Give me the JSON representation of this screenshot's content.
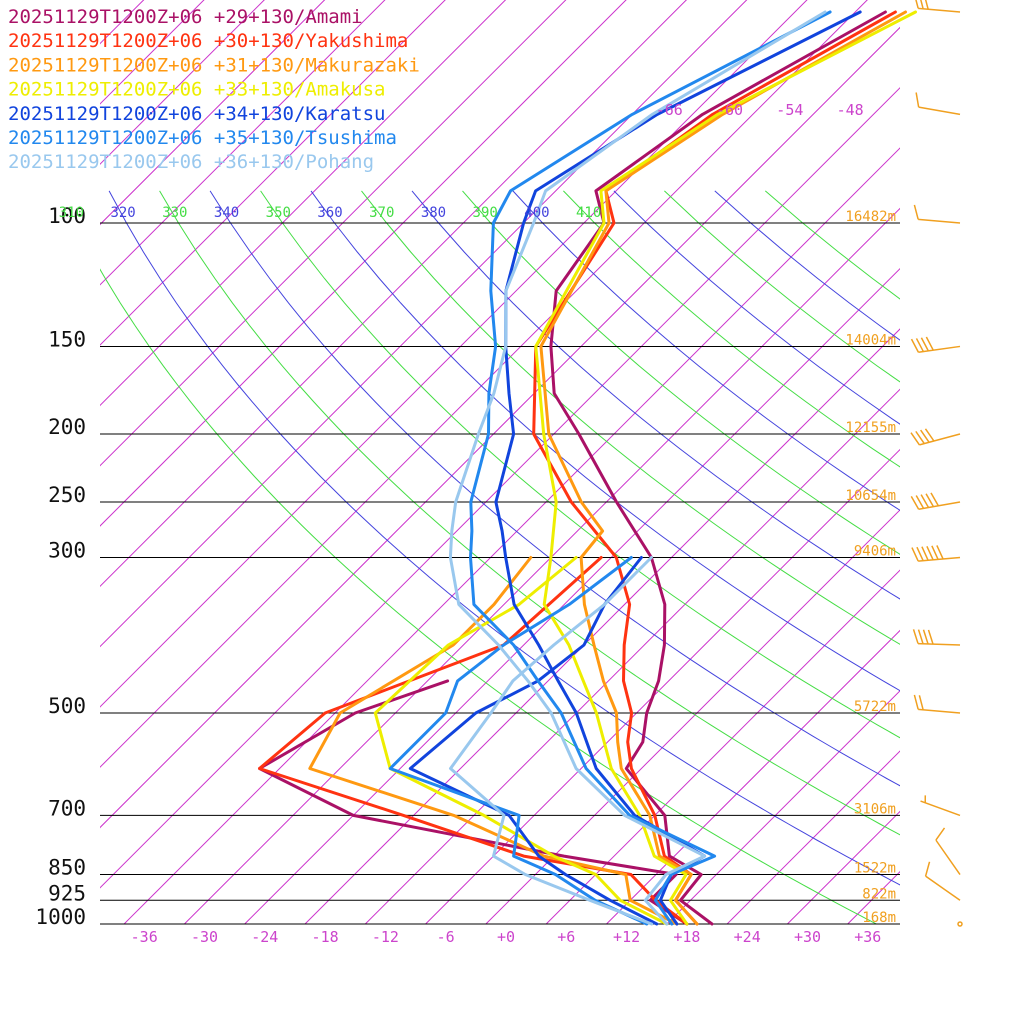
{
  "chart_data": {
    "type": "line",
    "subtype": "skew-t log-p sounding",
    "valid_time": "20251129T1200Z+06",
    "pressure_levels": [
      100,
      150,
      200,
      250,
      300,
      500,
      700,
      850,
      925,
      1000
    ],
    "pressure_labels": [
      "100",
      "150",
      "200",
      "250",
      "300",
      "500",
      "700",
      "850",
      "925",
      "1000"
    ],
    "height_labels": [
      {
        "p": 100,
        "text": "16482m"
      },
      {
        "p": 150,
        "text": "14004m"
      },
      {
        "p": 200,
        "text": "12155m"
      },
      {
        "p": 250,
        "text": "10654m"
      },
      {
        "p": 300,
        "text": "9406m"
      },
      {
        "p": 500,
        "text": "5722m"
      },
      {
        "p": 700,
        "text": "3106m"
      },
      {
        "p": 850,
        "text": "1522m"
      },
      {
        "p": 925,
        "text": "822m"
      },
      {
        "p": 1000,
        "text": "168m"
      }
    ],
    "temperature_ticks": [
      {
        "t": -36,
        "text": "-36"
      },
      {
        "t": -30,
        "text": "-30"
      },
      {
        "t": -24,
        "text": "-24"
      },
      {
        "t": -18,
        "text": "-18"
      },
      {
        "t": -12,
        "text": "-12"
      },
      {
        "t": -6,
        "text": "-6"
      },
      {
        "t": 0,
        "text": "+0"
      },
      {
        "t": 6,
        "text": "+6"
      },
      {
        "t": 12,
        "text": "+12"
      },
      {
        "t": 18,
        "text": "+18"
      },
      {
        "t": 24,
        "text": "+24"
      },
      {
        "t": 30,
        "text": "+30"
      },
      {
        "t": 36,
        "text": "+36"
      }
    ],
    "upper_temperature_ticks": [
      {
        "t": -66,
        "text": "-66"
      },
      {
        "t": -60,
        "text": "-60"
      },
      {
        "t": -54,
        "text": "-54"
      },
      {
        "t": -48,
        "text": "-48"
      }
    ],
    "theta_labels": [
      {
        "theta": 310,
        "text": "310",
        "color": "#44dd44"
      },
      {
        "theta": 320,
        "text": "320",
        "color": "#4444dd"
      },
      {
        "theta": 330,
        "text": "330",
        "color": "#44dd44"
      },
      {
        "theta": 340,
        "text": "340",
        "color": "#4444dd"
      },
      {
        "theta": 350,
        "text": "350",
        "color": "#44dd44"
      },
      {
        "theta": 360,
        "text": "360",
        "color": "#4444dd"
      },
      {
        "theta": 370,
        "text": "370",
        "color": "#44dd44"
      },
      {
        "theta": 380,
        "text": "380",
        "color": "#4444dd"
      },
      {
        "theta": 390,
        "text": "390",
        "color": "#44dd44"
      },
      {
        "theta": 400,
        "text": "400",
        "color": "#4444dd"
      },
      {
        "theta": 410,
        "text": "410",
        "color": "#44dd44"
      }
    ],
    "theta_lines": [
      {
        "theta": 310,
        "color": "#44dd44"
      },
      {
        "theta": 320,
        "color": "#4444dd"
      },
      {
        "theta": 330,
        "color": "#44dd44"
      },
      {
        "theta": 340,
        "color": "#4444dd"
      },
      {
        "theta": 350,
        "color": "#44dd44"
      },
      {
        "theta": 360,
        "color": "#4444dd"
      },
      {
        "theta": 370,
        "color": "#44dd44"
      },
      {
        "theta": 380,
        "color": "#4444dd"
      },
      {
        "theta": 390,
        "color": "#44dd44"
      },
      {
        "theta": 400,
        "color": "#4444dd"
      },
      {
        "theta": 410,
        "color": "#44dd44"
      },
      {
        "theta": 420,
        "color": "#4444dd"
      },
      {
        "theta": 430,
        "color": "#44dd44"
      },
      {
        "theta": 440,
        "color": "#4444dd"
      },
      {
        "theta": 450,
        "color": "#44dd44"
      }
    ],
    "colors": {
      "isotherm": "#cc33cc",
      "isobar": "#000000",
      "wind_barb": "#f0a020",
      "dry_adiabat_a": "#44dd44",
      "dry_adiabat_b": "#4444dd"
    },
    "series": [
      {
        "name": "20251129T1200Z+06 +29+130/Amami",
        "color": "#aa1166",
        "temperature": [
          [
            1000,
            20.5
          ],
          [
            925,
            15.0
          ],
          [
            850,
            14.5
          ],
          [
            800,
            9.5
          ],
          [
            700,
            5.0
          ],
          [
            600,
            -3.5
          ],
          [
            550,
            -4.5
          ],
          [
            500,
            -7.0
          ],
          [
            450,
            -9.0
          ],
          [
            400,
            -12.0
          ],
          [
            350,
            -16.0
          ],
          [
            300,
            -22.0
          ],
          [
            250,
            -31.0
          ],
          [
            200,
            -41.5
          ],
          [
            175,
            -48.0
          ],
          [
            150,
            -53.0
          ],
          [
            125,
            -58.0
          ],
          [
            100,
            -60.0
          ],
          [
            90,
            -64.0
          ],
          [
            70,
            -61.0
          ],
          [
            50,
            -53.0
          ]
        ],
        "dewpoint": [
          [
            1000,
            18.0
          ],
          [
            925,
            12.0
          ],
          [
            850,
            12.0
          ],
          [
            800,
            -1.0
          ],
          [
            700,
            -26.0
          ],
          [
            600,
            -40.0
          ],
          [
            500,
            -36.0
          ],
          [
            450,
            -30.0
          ]
        ]
      },
      {
        "name": "20251129T1200Z+06 +30+130/Yakushima",
        "color": "#ff3311",
        "temperature": [
          [
            1000,
            19.0
          ],
          [
            925,
            14.5
          ],
          [
            850,
            13.5
          ],
          [
            800,
            9.0
          ],
          [
            700,
            4.0
          ],
          [
            600,
            -3.0
          ],
          [
            550,
            -6.0
          ],
          [
            500,
            -8.5
          ],
          [
            450,
            -12.5
          ],
          [
            400,
            -16.0
          ],
          [
            350,
            -19.5
          ],
          [
            300,
            -25.5
          ],
          [
            250,
            -35.5
          ],
          [
            200,
            -46.0
          ],
          [
            150,
            -54.5
          ],
          [
            100,
            -59.0
          ],
          [
            90,
            -63.0
          ],
          [
            70,
            -60.0
          ],
          [
            50,
            -52.0
          ]
        ],
        "dewpoint": [
          [
            1000,
            18.0
          ],
          [
            925,
            12.5
          ],
          [
            850,
            7.5
          ],
          [
            800,
            -5.0
          ],
          [
            700,
            -21.0
          ],
          [
            600,
            -40.0
          ],
          [
            500,
            -39.0
          ],
          [
            400,
            -28.0
          ],
          [
            300,
            -27.0
          ]
        ]
      },
      {
        "name": "20251129T1200Z+06 +31+130/Makurazaki",
        "color": "#ff9911",
        "temperature": [
          [
            1000,
            19.0
          ],
          [
            925,
            14.5
          ],
          [
            850,
            13.5
          ],
          [
            800,
            8.5
          ],
          [
            700,
            3.5
          ],
          [
            600,
            -4.0
          ],
          [
            550,
            -7.0
          ],
          [
            500,
            -10.0
          ],
          [
            450,
            -14.5
          ],
          [
            400,
            -19.0
          ],
          [
            350,
            -24.0
          ],
          [
            300,
            -29.0
          ],
          [
            275,
            -29.5
          ],
          [
            250,
            -34.5
          ],
          [
            200,
            -44.5
          ],
          [
            150,
            -54.0
          ],
          [
            100,
            -59.5
          ],
          [
            90,
            -63.0
          ],
          [
            70,
            -59.0
          ],
          [
            50,
            -51.0
          ]
        ],
        "dewpoint": [
          [
            1000,
            17.0
          ],
          [
            925,
            10.0
          ],
          [
            850,
            7.0
          ],
          [
            800,
            -3.0
          ],
          [
            700,
            -16.0
          ],
          [
            600,
            -35.0
          ],
          [
            500,
            -37.5
          ],
          [
            400,
            -33.0
          ],
          [
            350,
            -33.0
          ],
          [
            300,
            -34.0
          ]
        ]
      },
      {
        "name": "20251129T1200Z+06 +33+130/Amakusa",
        "color": "#eeee00",
        "temperature": [
          [
            1000,
            18.0
          ],
          [
            925,
            14.0
          ],
          [
            850,
            13.0
          ],
          [
            800,
            8.0
          ],
          [
            700,
            2.5
          ],
          [
            600,
            -5.0
          ],
          [
            500,
            -12.0
          ],
          [
            450,
            -16.5
          ],
          [
            400,
            -21.5
          ],
          [
            350,
            -28.0
          ],
          [
            300,
            -32.0
          ],
          [
            250,
            -37.0
          ],
          [
            200,
            -45.0
          ],
          [
            150,
            -54.5
          ],
          [
            100,
            -60.0
          ],
          [
            90,
            -63.5
          ],
          [
            70,
            -59.5
          ],
          [
            50,
            -50.0
          ]
        ],
        "dewpoint": [
          [
            1000,
            16.0
          ],
          [
            925,
            9.0
          ],
          [
            850,
            4.0
          ],
          [
            800,
            -2.0
          ],
          [
            700,
            -13.0
          ],
          [
            600,
            -27.0
          ],
          [
            500,
            -34.0
          ],
          [
            400,
            -33.5
          ],
          [
            350,
            -30.5
          ],
          [
            300,
            -29.5
          ]
        ]
      },
      {
        "name": "20251129T1200Z+06 +34+130/Karatsu",
        "color": "#1144dd",
        "temperature": [
          [
            1000,
            17.0
          ],
          [
            925,
            13.0
          ],
          [
            850,
            11.5
          ],
          [
            800,
            13.0
          ],
          [
            700,
            2.0
          ],
          [
            600,
            -6.5
          ],
          [
            500,
            -14.0
          ],
          [
            450,
            -19.0
          ],
          [
            400,
            -24.5
          ],
          [
            350,
            -31.0
          ],
          [
            300,
            -36.5
          ],
          [
            275,
            -39.5
          ],
          [
            250,
            -43.0
          ],
          [
            200,
            -48.0
          ],
          [
            175,
            -52.5
          ],
          [
            150,
            -57.5
          ],
          [
            125,
            -63.0
          ],
          [
            100,
            -68.0
          ],
          [
            90,
            -70.0
          ],
          [
            70,
            -65.5
          ],
          [
            50,
            -55.5
          ]
        ],
        "dewpoint": [
          [
            1000,
            15.0
          ],
          [
            925,
            8.0
          ],
          [
            850,
            1.0
          ],
          [
            800,
            -3.5
          ],
          [
            700,
            -10.5
          ],
          [
            600,
            -25.0
          ],
          [
            500,
            -24.0
          ],
          [
            450,
            -21.0
          ],
          [
            400,
            -20.0
          ],
          [
            350,
            -22.0
          ],
          [
            300,
            -23.0
          ]
        ]
      },
      {
        "name": "20251129T1200Z+06 +35+130/Tsushima",
        "color": "#2288ee",
        "temperature": [
          [
            1000,
            16.5
          ],
          [
            925,
            12.5
          ],
          [
            850,
            11.5
          ],
          [
            800,
            14.0
          ],
          [
            700,
            1.5
          ],
          [
            600,
            -7.5
          ],
          [
            500,
            -15.5
          ],
          [
            450,
            -21.0
          ],
          [
            400,
            -27.0
          ],
          [
            350,
            -35.0
          ],
          [
            300,
            -40.0
          ],
          [
            275,
            -42.5
          ],
          [
            250,
            -45.5
          ],
          [
            200,
            -50.5
          ],
          [
            175,
            -54.5
          ],
          [
            150,
            -58.5
          ],
          [
            125,
            -64.5
          ],
          [
            100,
            -71.0
          ],
          [
            90,
            -72.5
          ],
          [
            70,
            -68.0
          ],
          [
            50,
            -58.5
          ]
        ],
        "dewpoint": [
          [
            1000,
            14.0
          ],
          [
            925,
            6.5
          ],
          [
            850,
            0.0
          ],
          [
            800,
            -6.0
          ],
          [
            700,
            -9.5
          ],
          [
            600,
            -27.0
          ],
          [
            500,
            -27.0
          ],
          [
            450,
            -29.0
          ],
          [
            400,
            -28.0
          ],
          [
            350,
            -25.5
          ],
          [
            300,
            -24.0
          ]
        ]
      },
      {
        "name": "20251129T1200Z+06 +36+130/Pohang",
        "color": "#99c8ee",
        "temperature": [
          [
            1000,
            16.0
          ],
          [
            925,
            11.5
          ],
          [
            850,
            11.0
          ],
          [
            800,
            13.0
          ],
          [
            700,
            1.0
          ],
          [
            600,
            -8.5
          ],
          [
            500,
            -16.5
          ],
          [
            450,
            -22.0
          ],
          [
            400,
            -28.5
          ],
          [
            350,
            -36.5
          ],
          [
            300,
            -42.0
          ],
          [
            275,
            -44.5
          ],
          [
            250,
            -47.0
          ],
          [
            200,
            -51.5
          ],
          [
            175,
            -54.0
          ],
          [
            150,
            -57.5
          ],
          [
            125,
            -63.0
          ],
          [
            100,
            -67.0
          ],
          [
            90,
            -69.0
          ],
          [
            70,
            -66.0
          ],
          [
            50,
            -59.0
          ]
        ],
        "dewpoint": [
          [
            1000,
            14.5
          ],
          [
            925,
            6.0
          ],
          [
            850,
            -3.0
          ],
          [
            800,
            -8.0
          ],
          [
            700,
            -11.0
          ],
          [
            600,
            -21.0
          ],
          [
            500,
            -22.5
          ],
          [
            450,
            -23.5
          ],
          [
            400,
            -23.0
          ],
          [
            350,
            -22.0
          ],
          [
            300,
            -22.0
          ]
        ]
      }
    ],
    "wind_barbs": [
      {
        "p": 1000,
        "speed_kt": 0,
        "dir_deg": 0
      },
      {
        "p": 925,
        "speed_kt": 10,
        "dir_deg": 305
      },
      {
        "p": 850,
        "speed_kt": 10,
        "dir_deg": 325
      },
      {
        "p": 700,
        "speed_kt": 5,
        "dir_deg": 290
      },
      {
        "p": 500,
        "speed_kt": 20,
        "dir_deg": 275
      },
      {
        "p": 400,
        "speed_kt": 40,
        "dir_deg": 272
      },
      {
        "p": 300,
        "speed_kt": 60,
        "dir_deg": 265
      },
      {
        "p": 250,
        "speed_kt": 50,
        "dir_deg": 260
      },
      {
        "p": 200,
        "speed_kt": 40,
        "dir_deg": 255
      },
      {
        "p": 150,
        "speed_kt": 40,
        "dir_deg": 262
      },
      {
        "p": 100,
        "speed_kt": 10,
        "dir_deg": 275
      },
      {
        "p": 70,
        "speed_kt": 10,
        "dir_deg": 280
      },
      {
        "p": 50,
        "speed_kt": 30,
        "dir_deg": 275
      }
    ],
    "p_range": [
      1000,
      50
    ],
    "t_range_at_surface": [
      -40,
      40
    ]
  }
}
